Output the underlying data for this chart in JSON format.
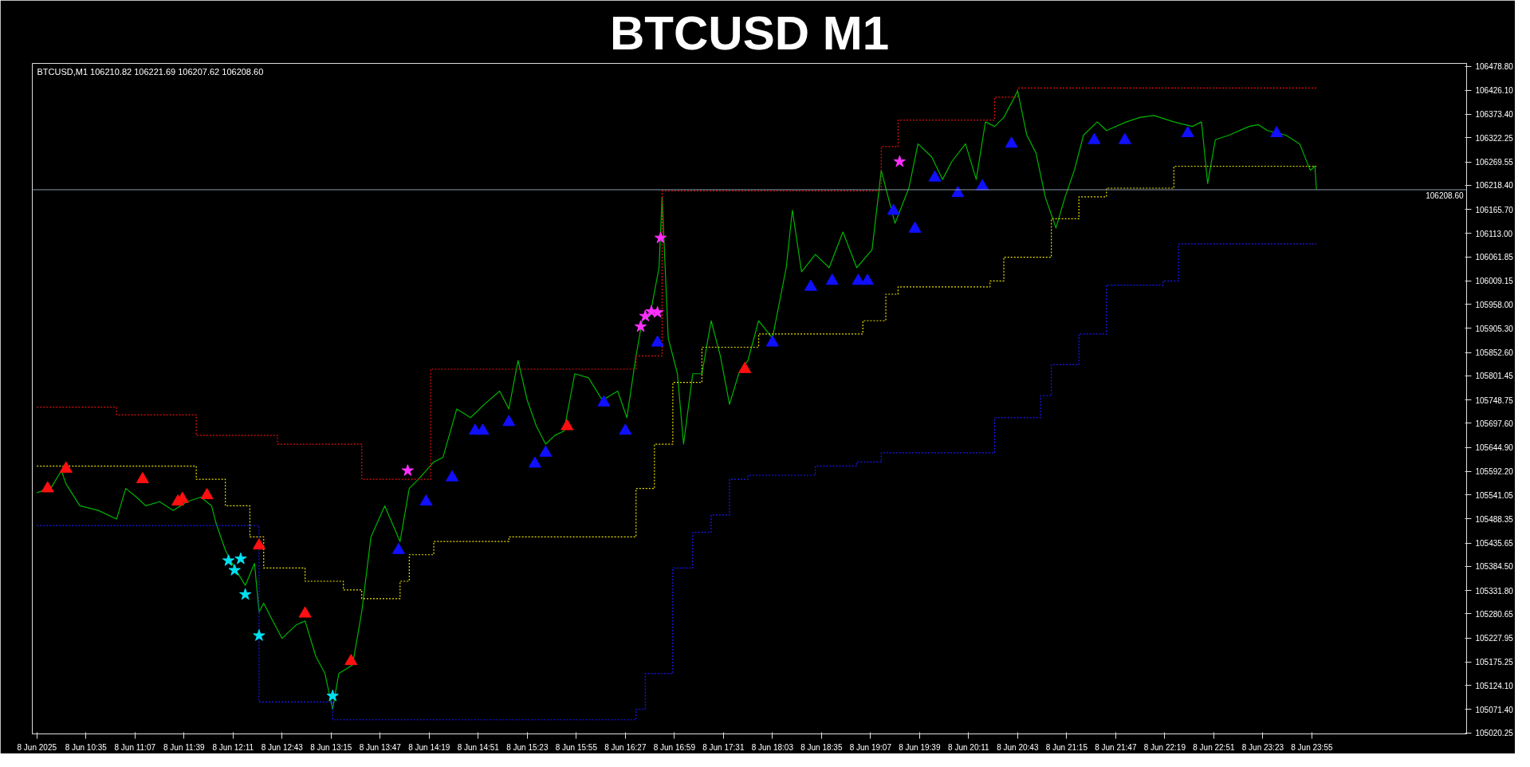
{
  "chart_data": {
    "type": "line",
    "title": "BTCUSD M1",
    "annotations": [
      "BTCUSD,M1  106210.82 106221.69 106207.62 106208.60"
    ],
    "xlim": [
      "2025-06-08T10:00",
      "2025-06-09T01:36"
    ],
    "xticks": [
      {
        "value": "2025-06-08T10:03",
        "label": "8 Jun 2025"
      },
      {
        "value": "2025-06-08T10:35",
        "label": "8 Jun 10:35"
      },
      {
        "value": "2025-06-08T11:07",
        "label": "8 Jun 11:07"
      },
      {
        "value": "2025-06-08T11:39",
        "label": "8 Jun 11:39"
      },
      {
        "value": "2025-06-08T12:11",
        "label": "8 Jun 12:11"
      },
      {
        "value": "2025-06-08T12:43",
        "label": "8 Jun 12:43"
      },
      {
        "value": "2025-06-08T13:15",
        "label": "8 Jun 13:15"
      },
      {
        "value": "2025-06-08T13:47",
        "label": "8 Jun 13:47"
      },
      {
        "value": "2025-06-08T14:19",
        "label": "8 Jun 14:19"
      },
      {
        "value": "2025-06-08T14:51",
        "label": "8 Jun 14:51"
      },
      {
        "value": "2025-06-08T15:23",
        "label": "8 Jun 15:23"
      },
      {
        "value": "2025-06-08T15:55",
        "label": "8 Jun 15:55"
      },
      {
        "value": "2025-06-08T16:27",
        "label": "8 Jun 16:27"
      },
      {
        "value": "2025-06-08T16:59",
        "label": "8 Jun 16:59"
      },
      {
        "value": "2025-06-08T17:31",
        "label": "8 Jun 17:31"
      },
      {
        "value": "2025-06-08T18:03",
        "label": "8 Jun 18:03"
      },
      {
        "value": "2025-06-08T18:35",
        "label": "8 Jun 18:35"
      },
      {
        "value": "2025-06-08T19:07",
        "label": "8 Jun 19:07"
      },
      {
        "value": "2025-06-08T19:39",
        "label": "8 Jun 19:39"
      },
      {
        "value": "2025-06-08T20:11",
        "label": "8 Jun 20:11"
      },
      {
        "value": "2025-06-08T20:43",
        "label": "8 Jun 20:43"
      },
      {
        "value": "2025-06-08T21:15",
        "label": "8 Jun 21:15"
      },
      {
        "value": "2025-06-08T21:47",
        "label": "8 Jun 21:47"
      },
      {
        "value": "2025-06-08T22:19",
        "label": "8 Jun 22:19"
      },
      {
        "value": "2025-06-08T22:51",
        "label": "8 Jun 22:51"
      },
      {
        "value": "2025-06-08T23:23",
        "label": "8 Jun 23:23"
      },
      {
        "value": "2025-06-08T23:55",
        "label": "8 Jun 23:55"
      }
    ],
    "ylim": [
      105018,
      106485
    ],
    "yticks": [
      {
        "value": 105020.25,
        "label": "105020.25"
      },
      {
        "value": 105071.4,
        "label": "105071.40"
      },
      {
        "value": 105124.1,
        "label": "105124.10"
      },
      {
        "value": 105175.25,
        "label": "105175.25"
      },
      {
        "value": 105227.95,
        "label": "105227.95"
      },
      {
        "value": 105280.65,
        "label": "105280.65"
      },
      {
        "value": 105331.8,
        "label": "105331.80"
      },
      {
        "value": 105384.5,
        "label": "105384.50"
      },
      {
        "value": 105435.65,
        "label": "105435.65"
      },
      {
        "value": 105488.35,
        "label": "105488.35"
      },
      {
        "value": 105541.05,
        "label": "105541.05"
      },
      {
        "value": 105592.2,
        "label": "105592.20"
      },
      {
        "value": 105644.9,
        "label": "105644.90"
      },
      {
        "value": 105697.6,
        "label": "105697.60"
      },
      {
        "value": 105748.75,
        "label": "105748.75"
      },
      {
        "value": 105801.45,
        "label": "105801.45"
      },
      {
        "value": 105852.6,
        "label": "105852.60"
      },
      {
        "value": 105905.3,
        "label": "105905.30"
      },
      {
        "value": 105958.0,
        "label": "105958.00"
      },
      {
        "value": 106009.15,
        "label": "106009.15"
      },
      {
        "value": 106061.85,
        "label": "106061.85"
      },
      {
        "value": 106113.0,
        "label": "106113.00"
      },
      {
        "value": 106165.7,
        "label": "106165.70"
      },
      {
        "value": 106218.4,
        "label": "106218.40"
      },
      {
        "value": 106269.55,
        "label": "106269.55"
      },
      {
        "value": 106322.25,
        "label": "106322.25"
      },
      {
        "value": 106373.4,
        "label": "106373.40"
      },
      {
        "value": 106426.1,
        "label": "106426.10"
      },
      {
        "value": 106478.8,
        "label": "106478.80"
      }
    ],
    "ref_lines": [
      {
        "axis": "y",
        "value": 106208.6,
        "label": "106208.60",
        "color": "#8a9aaa"
      }
    ],
    "series": [
      {
        "color": "#00b400",
        "x": [
          "2025-06-08T10:03",
          "2025-06-08T10:12",
          "2025-06-08T10:19",
          "2025-06-08T10:22",
          "2025-06-08T10:31",
          "2025-06-08T10:43",
          "2025-06-08T10:55",
          "2025-06-08T11:01",
          "2025-06-08T11:08",
          "2025-06-08T11:14",
          "2025-06-08T11:23",
          "2025-06-08T11:32",
          "2025-06-08T11:41",
          "2025-06-08T11:50",
          "2025-06-08T11:57",
          "2025-06-08T12:00",
          "2025-06-08T12:06",
          "2025-06-08T12:12",
          "2025-06-08T12:19",
          "2025-06-08T12:25",
          "2025-06-08T12:28",
          "2025-06-08T12:31",
          "2025-06-08T12:37",
          "2025-06-08T12:43",
          "2025-06-08T12:52",
          "2025-06-08T12:58",
          "2025-06-08T13:05",
          "2025-06-08T13:11",
          "2025-06-08T13:16",
          "2025-06-08T13:20",
          "2025-06-08T13:29",
          "2025-06-08T13:35",
          "2025-06-08T13:41",
          "2025-06-08T13:50",
          "2025-06-08T14:00",
          "2025-06-08T14:06",
          "2025-06-08T14:12",
          "2025-06-08T14:22",
          "2025-06-08T14:28",
          "2025-06-08T14:37",
          "2025-06-08T14:46",
          "2025-06-08T14:55",
          "2025-06-08T15:05",
          "2025-06-08T15:11",
          "2025-06-08T15:17",
          "2025-06-08T15:23",
          "2025-06-08T15:29",
          "2025-06-08T15:35",
          "2025-06-08T15:41",
          "2025-06-08T15:47",
          "2025-06-08T15:54",
          "2025-06-08T16:03",
          "2025-06-08T16:12",
          "2025-06-08T16:22",
          "2025-06-08T16:28",
          "2025-06-08T16:34",
          "2025-06-08T16:38",
          "2025-06-08T16:43",
          "2025-06-08T16:49",
          "2025-06-08T16:51",
          "2025-06-08T16:55",
          "2025-06-08T17:01",
          "2025-06-08T17:05",
          "2025-06-08T17:11",
          "2025-06-08T17:17",
          "2025-06-08T17:23",
          "2025-06-08T17:29",
          "2025-06-08T17:35",
          "2025-06-08T17:41",
          "2025-06-08T17:47",
          "2025-06-08T17:54",
          "2025-06-08T18:03",
          "2025-06-08T18:12",
          "2025-06-08T18:16",
          "2025-06-08T18:22",
          "2025-06-08T18:31",
          "2025-06-08T18:40",
          "2025-06-08T18:49",
          "2025-06-08T18:58",
          "2025-06-08T19:08",
          "2025-06-08T19:14",
          "2025-06-08T19:17",
          "2025-06-08T19:23",
          "2025-06-08T19:32",
          "2025-06-08T19:38",
          "2025-06-08T19:47",
          "2025-06-08T19:54",
          "2025-06-08T20:00",
          "2025-06-08T20:09",
          "2025-06-08T20:16",
          "2025-06-08T20:22",
          "2025-06-08T20:28",
          "2025-06-08T20:34",
          "2025-06-08T20:40",
          "2025-06-08T20:43",
          "2025-06-08T20:49",
          "2025-06-08T20:55",
          "2025-06-08T21:01",
          "2025-06-08T21:08",
          "2025-06-08T21:14",
          "2025-06-08T21:20",
          "2025-06-08T21:26",
          "2025-06-08T21:35",
          "2025-06-08T21:41",
          "2025-06-08T21:54",
          "2025-06-08T22:03",
          "2025-06-08T22:12",
          "2025-06-08T22:25",
          "2025-06-08T22:37",
          "2025-06-08T22:43",
          "2025-06-08T22:47",
          "2025-06-08T22:52",
          "2025-06-08T23:01",
          "2025-06-08T23:14",
          "2025-06-08T23:20",
          "2025-06-08T23:26",
          "2025-06-08T23:38",
          "2025-06-08T23:47",
          "2025-06-08T23:54",
          "2025-06-08T23:57",
          "2025-06-08T23:58"
        ],
        "values": [
          105546,
          105555,
          105594,
          105565,
          105517,
          105507,
          105488,
          105555,
          105536,
          105517,
          105526,
          105507,
          105526,
          105536,
          105517,
          105478,
          105420,
          105381,
          105343,
          105391,
          105285,
          105304,
          105265,
          105227,
          105256,
          105265,
          105188,
          105150,
          105072,
          105150,
          105169,
          105285,
          105449,
          105517,
          105439,
          105555,
          105575,
          105613,
          105623,
          105729,
          105710,
          105739,
          105768,
          105729,
          105835,
          105748,
          105691,
          105652,
          105671,
          105681,
          105806,
          105797,
          105748,
          105768,
          105710,
          105845,
          105922,
          105932,
          106038,
          106193,
          105884,
          105806,
          105652,
          105806,
          105806,
          105922,
          105845,
          105739,
          105806,
          105835,
          105922,
          105884,
          106038,
          106164,
          106029,
          106067,
          106038,
          106116,
          106038,
          106077,
          106251,
          106212,
          106135,
          106212,
          106309,
          106280,
          106231,
          106270,
          106309,
          106231,
          106357,
          106347,
          106367,
          106405,
          106425,
          106328,
          106289,
          106193,
          106125,
          106193,
          106251,
          106328,
          106357,
          106338,
          106357,
          106367,
          106371,
          106357,
          106347,
          106357,
          106222,
          106318,
          106328,
          106347,
          106351,
          106338,
          106328,
          106309,
          106251,
          106260,
          106209
        ]
      },
      {
        "type": "step",
        "color": "#e01010",
        "line_style": "dotted",
        "x": [
          "2025-06-08T10:03",
          "2025-06-08T10:55",
          "2025-06-08T11:47",
          "2025-06-08T12:40",
          "2025-06-08T13:35",
          "2025-06-08T14:20",
          "2025-06-08T16:34",
          "2025-06-08T16:51",
          "2025-06-08T19:14",
          "2025-06-08T19:25",
          "2025-06-08T20:28",
          "2025-06-08T20:43",
          "2025-06-08T23:58"
        ],
        "values": [
          105733,
          105716,
          105671,
          105652,
          105575,
          105816,
          105845,
          106206,
          106303,
          106361,
          106411,
          106431,
          106431
        ]
      },
      {
        "type": "step",
        "color": "#e8e000",
        "line_style": "dotted",
        "x": [
          "2025-06-08T10:03",
          "2025-06-08T11:47",
          "2025-06-08T12:06",
          "2025-06-08T12:22",
          "2025-06-08T12:31",
          "2025-06-08T12:58",
          "2025-06-08T13:23",
          "2025-06-08T13:35",
          "2025-06-08T14:00",
          "2025-06-08T14:06",
          "2025-06-08T14:22",
          "2025-06-08T15:11",
          "2025-06-08T16:34",
          "2025-06-08T16:46",
          "2025-06-08T16:58",
          "2025-06-08T17:17",
          "2025-06-08T17:54",
          "2025-06-08T19:02",
          "2025-06-08T19:17",
          "2025-06-08T19:25",
          "2025-06-08T20:25",
          "2025-06-08T20:34",
          "2025-06-08T21:05",
          "2025-06-08T21:23",
          "2025-06-08T21:41",
          "2025-06-08T22:25",
          "2025-06-08T23:58"
        ],
        "values": [
          105604,
          105575,
          105517,
          105449,
          105381,
          105352,
          105333,
          105314,
          105352,
          105410,
          105439,
          105449,
          105555,
          105652,
          105787,
          105864,
          105893,
          105922,
          105980,
          105996,
          106009,
          106061,
          106145,
          106193,
          106212,
          106260,
          106260
        ]
      },
      {
        "type": "step",
        "color": "#1a1aff",
        "line_style": "dotted",
        "x": [
          "2025-06-08T10:03",
          "2025-06-08T12:28",
          "2025-06-08T13:16",
          "2025-06-08T16:34",
          "2025-06-08T16:40",
          "2025-06-08T16:58",
          "2025-06-08T17:11",
          "2025-06-08T17:23",
          "2025-06-08T17:35",
          "2025-06-08T17:47",
          "2025-06-08T18:31",
          "2025-06-08T18:58",
          "2025-06-08T19:14",
          "2025-06-08T20:22",
          "2025-06-08T20:28",
          "2025-06-08T20:58",
          "2025-06-08T21:05",
          "2025-06-08T21:23",
          "2025-06-08T21:41",
          "2025-06-08T22:18",
          "2025-06-08T22:28",
          "2025-06-08T23:58"
        ],
        "values": [
          105474,
          105088,
          105049,
          105072,
          105150,
          105381,
          105459,
          105497,
          105575,
          105584,
          105604,
          105613,
          105633,
          105633,
          105710,
          105758,
          105826,
          105893,
          106000,
          106009,
          106090,
          106090
        ]
      },
      {
        "type": "scatter",
        "color": "#ff1010",
        "marker": "triangle",
        "x": [
          "2025-06-08T10:10",
          "2025-06-08T10:22",
          "2025-06-08T11:12",
          "2025-06-08T11:35",
          "2025-06-08T11:38",
          "2025-06-08T11:54",
          "2025-06-08T12:28",
          "2025-06-08T12:58",
          "2025-06-08T13:28",
          "2025-06-08T15:49",
          "2025-06-08T17:45"
        ],
        "values": [
          105555,
          105598,
          105575,
          105526,
          105532,
          105540,
          105430,
          105281,
          105177,
          105691,
          105816
        ]
      },
      {
        "type": "scatter",
        "color": "#1010ff",
        "marker": "triangle",
        "x": [
          "2025-06-08T13:59",
          "2025-06-08T14:17",
          "2025-06-08T14:34",
          "2025-06-08T14:49",
          "2025-06-08T14:54",
          "2025-06-08T15:11",
          "2025-06-08T15:28",
          "2025-06-08T15:35",
          "2025-06-08T16:13",
          "2025-06-08T16:27",
          "2025-06-08T16:48",
          "2025-06-08T18:03",
          "2025-06-08T18:28",
          "2025-06-08T18:42",
          "2025-06-08T18:59",
          "2025-06-08T19:05",
          "2025-06-08T19:22",
          "2025-06-08T19:36",
          "2025-06-08T19:49",
          "2025-06-08T20:04",
          "2025-06-08T20:20",
          "2025-06-08T20:39",
          "2025-06-08T21:33",
          "2025-06-08T21:53",
          "2025-06-08T22:34",
          "2025-06-08T23:32"
        ],
        "values": [
          105420,
          105526,
          105579,
          105681,
          105681,
          105700,
          105609,
          105633,
          105743,
          105681,
          105874,
          105874,
          105996,
          106009,
          106009,
          106009,
          106162,
          106123,
          106235,
          106201,
          106216,
          106309,
          106317,
          106317,
          106332,
          106332
        ]
      },
      {
        "type": "scatter",
        "color": "#00e0f0",
        "marker": "star",
        "x": [
          "2025-06-08T12:08",
          "2025-06-08T12:12",
          "2025-06-08T12:16",
          "2025-06-08T12:19",
          "2025-06-08T12:28",
          "2025-06-08T13:16"
        ],
        "values": [
          105397,
          105376,
          105401,
          105323,
          105233,
          105101
        ]
      },
      {
        "type": "scatter",
        "color": "#ff30ff",
        "marker": "star",
        "x": [
          "2025-06-08T14:05",
          "2025-06-08T16:37",
          "2025-06-08T16:40",
          "2025-06-08T16:44",
          "2025-06-08T16:48",
          "2025-06-08T16:50",
          "2025-06-08T19:26"
        ],
        "values": [
          105594,
          105909,
          105932,
          105942,
          105940,
          106103,
          106270
        ]
      }
    ]
  }
}
